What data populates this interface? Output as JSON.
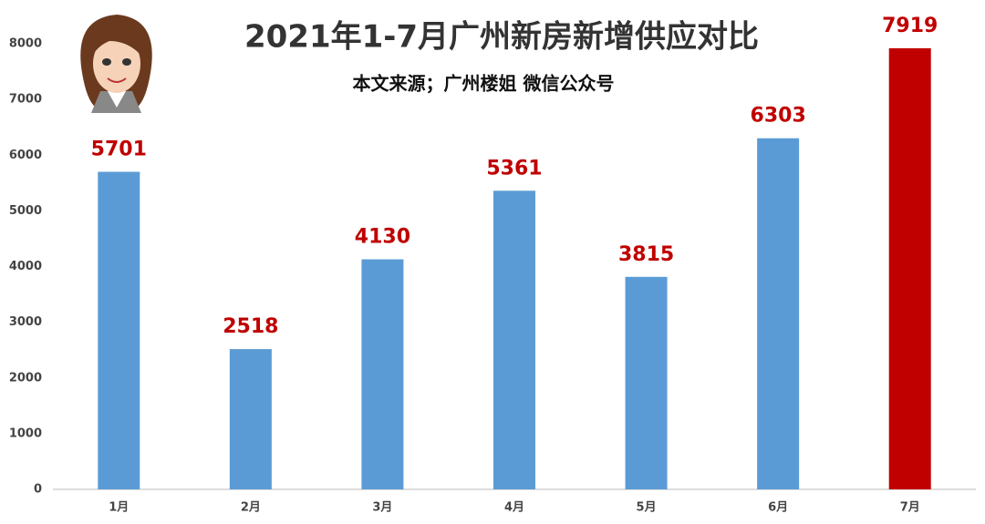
{
  "chart_data": {
    "type": "bar",
    "title": "2021年1-7月广州新房新增供应对比",
    "subtitle": "本文来源；广州楼姐 微信公众号",
    "categories": [
      "1月",
      "2月",
      "3月",
      "4月",
      "5月",
      "6月",
      "7月"
    ],
    "values": [
      5701,
      2518,
      4130,
      5361,
      3815,
      6303,
      7919
    ],
    "colors": [
      "#5b9bd5",
      "#5b9bd5",
      "#5b9bd5",
      "#5b9bd5",
      "#5b9bd5",
      "#5b9bd5",
      "#c00000"
    ],
    "ylim": [
      0,
      8000
    ],
    "yticks": [
      0,
      1000,
      2000,
      3000,
      4000,
      5000,
      6000,
      7000,
      8000
    ],
    "grid": false
  }
}
